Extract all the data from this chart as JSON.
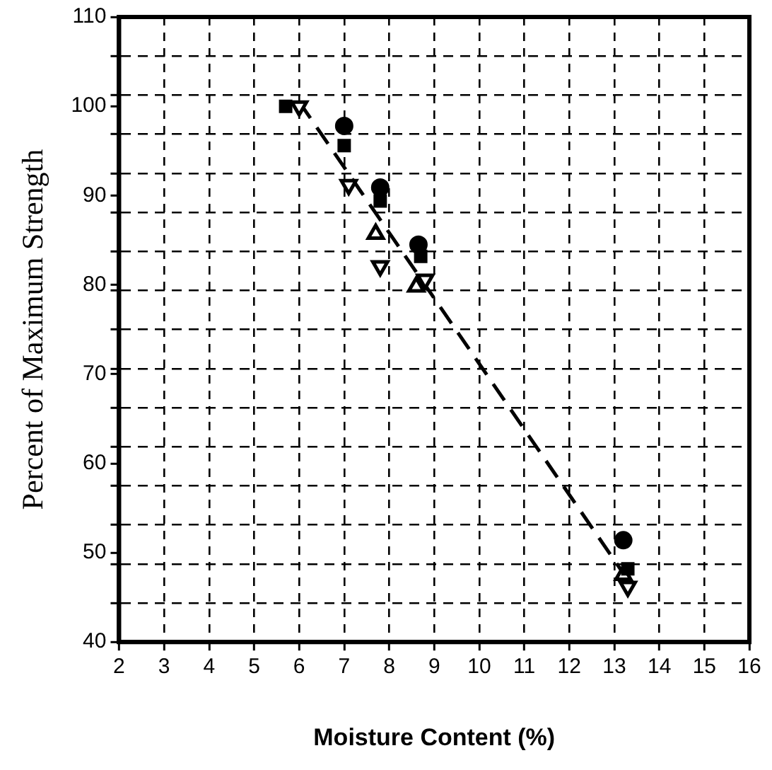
{
  "chart_data": {
    "type": "scatter",
    "xlabel": "Moisture Content (%)",
    "ylabel": "Percent of Maximum Strength",
    "xlim": [
      2,
      16
    ],
    "xticks": [
      2,
      3,
      4,
      5,
      6,
      7,
      8,
      9,
      10,
      11,
      12,
      13,
      14,
      15,
      16
    ],
    "ylim": [
      40,
      110
    ],
    "yticks": [
      40,
      {
        "value": 44.375,
        "label": null
      },
      {
        "value": 48.75,
        "label": null
      },
      50,
      {
        "value": 53.125,
        "label": null
      },
      {
        "value": 57.5,
        "label": null
      },
      60,
      {
        "value": 61.875,
        "label": null
      },
      {
        "value": 66.25,
        "label": null
      },
      70,
      {
        "value": 70.625,
        "label": null
      },
      {
        "value": 75,
        "label": null
      },
      {
        "value": 79.375,
        "label": null
      },
      80,
      {
        "value": 83.75,
        "label": null
      },
      {
        "value": 88.125,
        "label": null
      },
      90,
      {
        "value": 92.5,
        "label": null
      },
      {
        "value": 96.875,
        "label": null
      },
      100,
      {
        "value": 101.25,
        "label": null
      },
      {
        "value": 105.625,
        "label": null
      },
      110
    ],
    "grid": true,
    "legend": false,
    "series": [
      {
        "type": "scatter",
        "marker": "circle",
        "color": "#000000",
        "x": [
          7.0,
          7.8,
          8.65,
          13.2
        ],
        "values": [
          97.8,
          90.9,
          84.5,
          51.4
        ]
      },
      {
        "type": "scatter",
        "marker": "square",
        "color": "#000000",
        "x": [
          5.7,
          7.0,
          7.8,
          8.7,
          13.3
        ],
        "values": [
          100,
          95.6,
          89.4,
          83.2,
          48.2
        ]
      },
      {
        "type": "scatter",
        "marker": "triangle",
        "color": "#000000",
        "x": [
          7.7,
          8.6,
          13.2
        ],
        "values": [
          85.7,
          79.8,
          47.5
        ]
      },
      {
        "type": "scatter",
        "marker": "triangle-down",
        "color": "#000000",
        "x": [
          6.0,
          7.1,
          7.8,
          8.8,
          13.3
        ],
        "values": [
          100,
          91.2,
          82.1,
          80.6,
          46.2
        ]
      },
      {
        "type": "line",
        "marker": "none",
        "line_style": "dashed",
        "color": "#000000",
        "x": [
          6.0,
          13.2
        ],
        "values": [
          100.5,
          47.7
        ]
      }
    ]
  }
}
